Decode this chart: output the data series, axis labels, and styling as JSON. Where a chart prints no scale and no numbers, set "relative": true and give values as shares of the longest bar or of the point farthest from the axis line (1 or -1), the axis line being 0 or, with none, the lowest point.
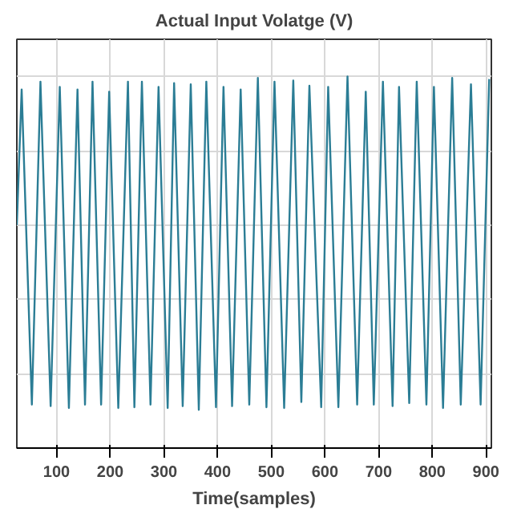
{
  "chart_data": {
    "type": "line",
    "title": "Actual Input Volatge (V)",
    "xlabel": "Time(samples)",
    "relative": true,
    "tick_labels": "x",
    "grid": true,
    "line_style": "solid",
    "xlim": [
      26,
      910
    ],
    "xticks": [
      100,
      200,
      300,
      400,
      500,
      600,
      700,
      800,
      900
    ],
    "series": [
      {
        "color": "#2b7d95",
        "x": [
          26,
          35,
          54,
          70,
          89,
          106,
          123,
          139,
          153,
          167,
          183,
          198,
          215,
          233,
          245,
          259,
          275,
          290,
          307,
          319,
          335,
          350,
          365,
          379,
          397,
          411,
          427,
          443,
          459,
          475,
          491,
          506,
          524,
          541,
          556,
          571,
          593,
          606,
          625,
          642,
          660,
          676,
          691,
          708,
          726,
          738,
          757,
          771,
          789,
          803,
          820,
          837,
          853,
          872,
          890,
          906
        ],
        "values": [
          0.6,
          0.965,
          0.117,
          0.986,
          0.113,
          0.972,
          0.108,
          0.965,
          0.117,
          0.986,
          0.117,
          0.959,
          0.108,
          0.986,
          0.11,
          0.986,
          0.117,
          0.972,
          0.108,
          0.982,
          0.113,
          0.979,
          0.103,
          0.986,
          0.11,
          0.972,
          0.113,
          0.965,
          0.117,
          0.996,
          0.11,
          0.986,
          0.108,
          0.989,
          0.124,
          0.975,
          0.11,
          0.972,
          0.11,
          1.0,
          0.117,
          0.959,
          0.117,
          0.986,
          0.113,
          0.972,
          0.121,
          0.986,
          0.117,
          0.972,
          0.108,
          0.996,
          0.117,
          0.979,
          0.117,
          0.993
        ]
      }
    ]
  }
}
